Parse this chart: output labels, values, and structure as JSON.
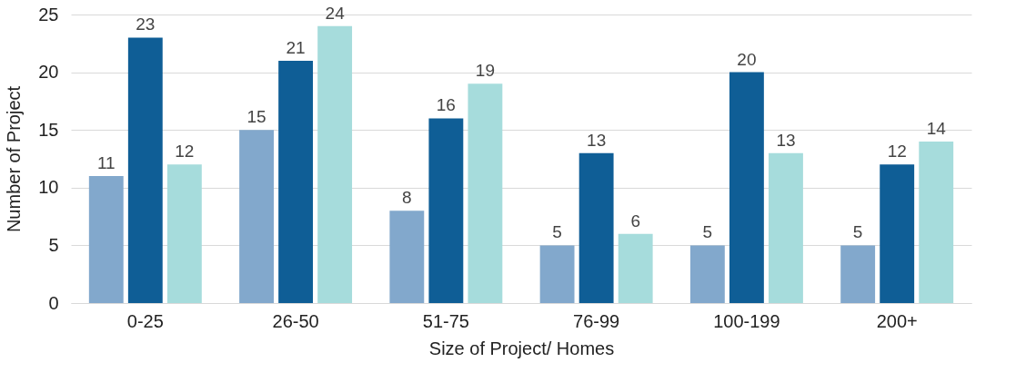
{
  "chart_data": {
    "type": "bar",
    "xlabel": "Size of Project/ Homes",
    "ylabel": "Number of Project",
    "categories": [
      "0-25",
      "26-50",
      "51-75",
      "76-99",
      "100-199",
      "200+"
    ],
    "series": [
      {
        "color": "#82a8cc",
        "values": [
          11,
          15,
          8,
          5,
          5,
          5
        ]
      },
      {
        "color": "#0f5e96",
        "values": [
          23,
          21,
          16,
          13,
          20,
          12
        ]
      },
      {
        "color": "#a6dcdc",
        "values": [
          12,
          24,
          19,
          6,
          13,
          14
        ]
      }
    ],
    "ylim": [
      0,
      25
    ],
    "yticks": [
      0,
      5,
      10,
      15,
      20,
      25
    ],
    "grid": "y",
    "data_labels": true
  }
}
